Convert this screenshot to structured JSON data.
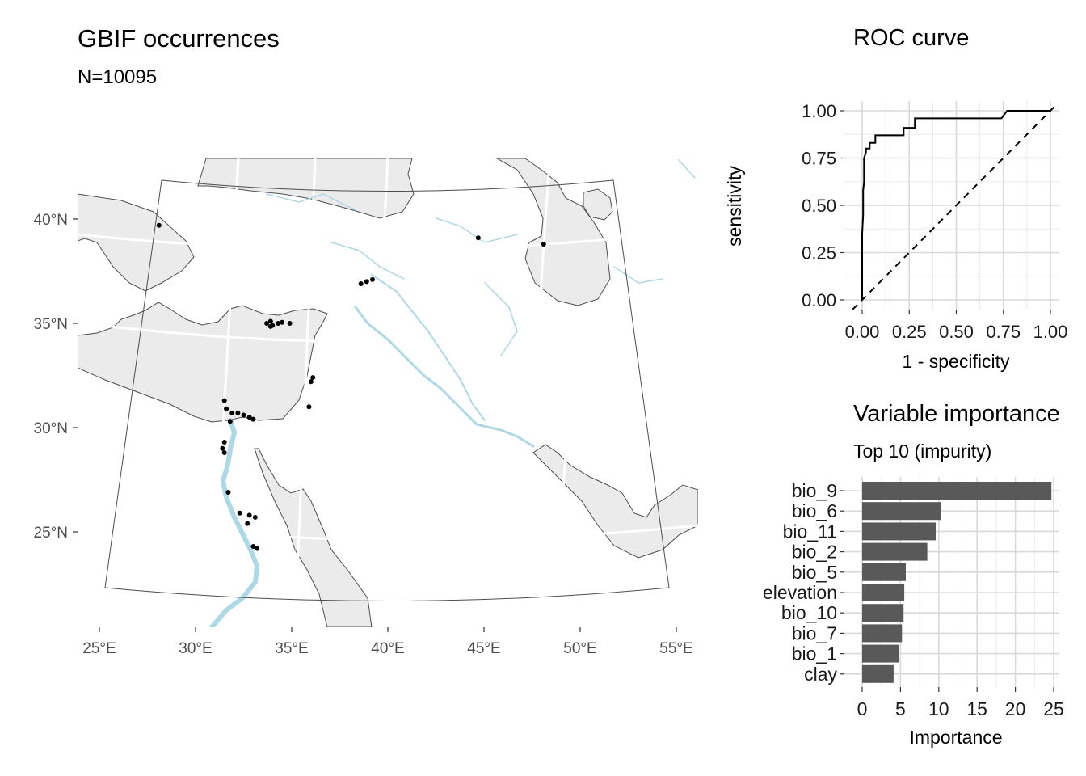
{
  "chart_data": [
    {
      "type": "scatter",
      "title": "GBIF occurrences",
      "subtitle": "N=10095",
      "x_tick_labels": [
        "25°E",
        "30°E",
        "35°E",
        "40°E",
        "45°E",
        "50°E",
        "55°E"
      ],
      "y_tick_labels": [
        "25°N",
        "30°N",
        "35°N",
        "40°N"
      ],
      "x_ticks": [
        25,
        30,
        35,
        40,
        45,
        50,
        55
      ],
      "y_ticks": [
        25,
        30,
        35,
        40
      ],
      "grid": true,
      "points": [
        {
          "lon": 28.1,
          "lat": 39.7
        },
        {
          "lon": 33.7,
          "lat": 35.0
        },
        {
          "lon": 33.9,
          "lat": 35.1
        },
        {
          "lon": 34.0,
          "lat": 34.9
        },
        {
          "lon": 34.3,
          "lat": 35.0
        },
        {
          "lon": 34.5,
          "lat": 35.05
        },
        {
          "lon": 34.9,
          "lat": 35.0
        },
        {
          "lon": 33.9,
          "lat": 34.85
        },
        {
          "lon": 38.6,
          "lat": 36.9
        },
        {
          "lon": 38.9,
          "lat": 37.0
        },
        {
          "lon": 39.2,
          "lat": 37.1
        },
        {
          "lon": 44.7,
          "lat": 39.1
        },
        {
          "lon": 48.1,
          "lat": 38.8
        },
        {
          "lon": 36.1,
          "lat": 32.4
        },
        {
          "lon": 36.0,
          "lat": 32.2
        },
        {
          "lon": 35.9,
          "lat": 31.0
        },
        {
          "lon": 31.5,
          "lat": 31.3
        },
        {
          "lon": 31.6,
          "lat": 30.9
        },
        {
          "lon": 31.9,
          "lat": 30.7
        },
        {
          "lon": 32.2,
          "lat": 30.7
        },
        {
          "lon": 32.5,
          "lat": 30.6
        },
        {
          "lon": 32.8,
          "lat": 30.5
        },
        {
          "lon": 33.0,
          "lat": 30.4
        },
        {
          "lon": 31.8,
          "lat": 30.3
        },
        {
          "lon": 31.5,
          "lat": 29.3
        },
        {
          "lon": 31.4,
          "lat": 29.0
        },
        {
          "lon": 31.5,
          "lat": 28.8
        },
        {
          "lon": 31.7,
          "lat": 26.9
        },
        {
          "lon": 32.3,
          "lat": 25.9
        },
        {
          "lon": 32.8,
          "lat": 25.8
        },
        {
          "lon": 33.1,
          "lat": 25.7
        },
        {
          "lon": 32.7,
          "lat": 25.4
        },
        {
          "lon": 33.0,
          "lat": 24.3
        },
        {
          "lon": 33.2,
          "lat": 24.2
        }
      ]
    },
    {
      "type": "line",
      "title": "ROC curve",
      "xlabel": "1 - specificity",
      "ylabel": "sensitivity",
      "xlim": [
        0,
        1
      ],
      "ylim": [
        0,
        1
      ],
      "x_tick_labels": [
        "0.00",
        "0.25",
        "0.50",
        "0.75",
        "1.00"
      ],
      "y_tick_labels": [
        "0.00",
        "0.25",
        "0.50",
        "0.75",
        "1.00"
      ],
      "x_ticks": [
        0,
        0.25,
        0.5,
        0.75,
        1
      ],
      "y_ticks": [
        0,
        0.25,
        0.5,
        0.75,
        1
      ],
      "grid": true,
      "series": [
        {
          "style": "solid",
          "x": [
            0,
            0,
            0.005,
            0.005,
            0.01,
            0.01,
            0.02,
            0.02,
            0.04,
            0.04,
            0.07,
            0.07,
            0.22,
            0.22,
            0.28,
            0.28,
            0.74,
            0.77,
            1,
            1
          ],
          "y": [
            0,
            0.35,
            0.45,
            0.58,
            0.62,
            0.75,
            0.78,
            0.8,
            0.8,
            0.83,
            0.83,
            0.87,
            0.87,
            0.91,
            0.91,
            0.96,
            0.96,
            1,
            1,
            1
          ]
        },
        {
          "style": "dashed",
          "x": [
            0,
            1
          ],
          "y": [
            0,
            1
          ]
        }
      ]
    },
    {
      "type": "bar",
      "orientation": "horizontal",
      "title": "Variable importance",
      "subtitle": "Top 10 (impurity)",
      "xlabel": "Importance",
      "xlim": [
        0,
        25
      ],
      "x_tick_labels": [
        "0",
        "5",
        "10",
        "15",
        "20",
        "25"
      ],
      "x_ticks": [
        0,
        5,
        10,
        15,
        20,
        25
      ],
      "grid": true,
      "bar_color": "#595959",
      "categories": [
        "bio_9",
        "bio_6",
        "bio_11",
        "bio_2",
        "bio_5",
        "elevation",
        "bio_10",
        "bio_7",
        "bio_1",
        "clay"
      ],
      "values": [
        24.7,
        10.3,
        9.6,
        8.5,
        5.7,
        5.5,
        5.4,
        5.2,
        4.8,
        4.1
      ]
    }
  ]
}
